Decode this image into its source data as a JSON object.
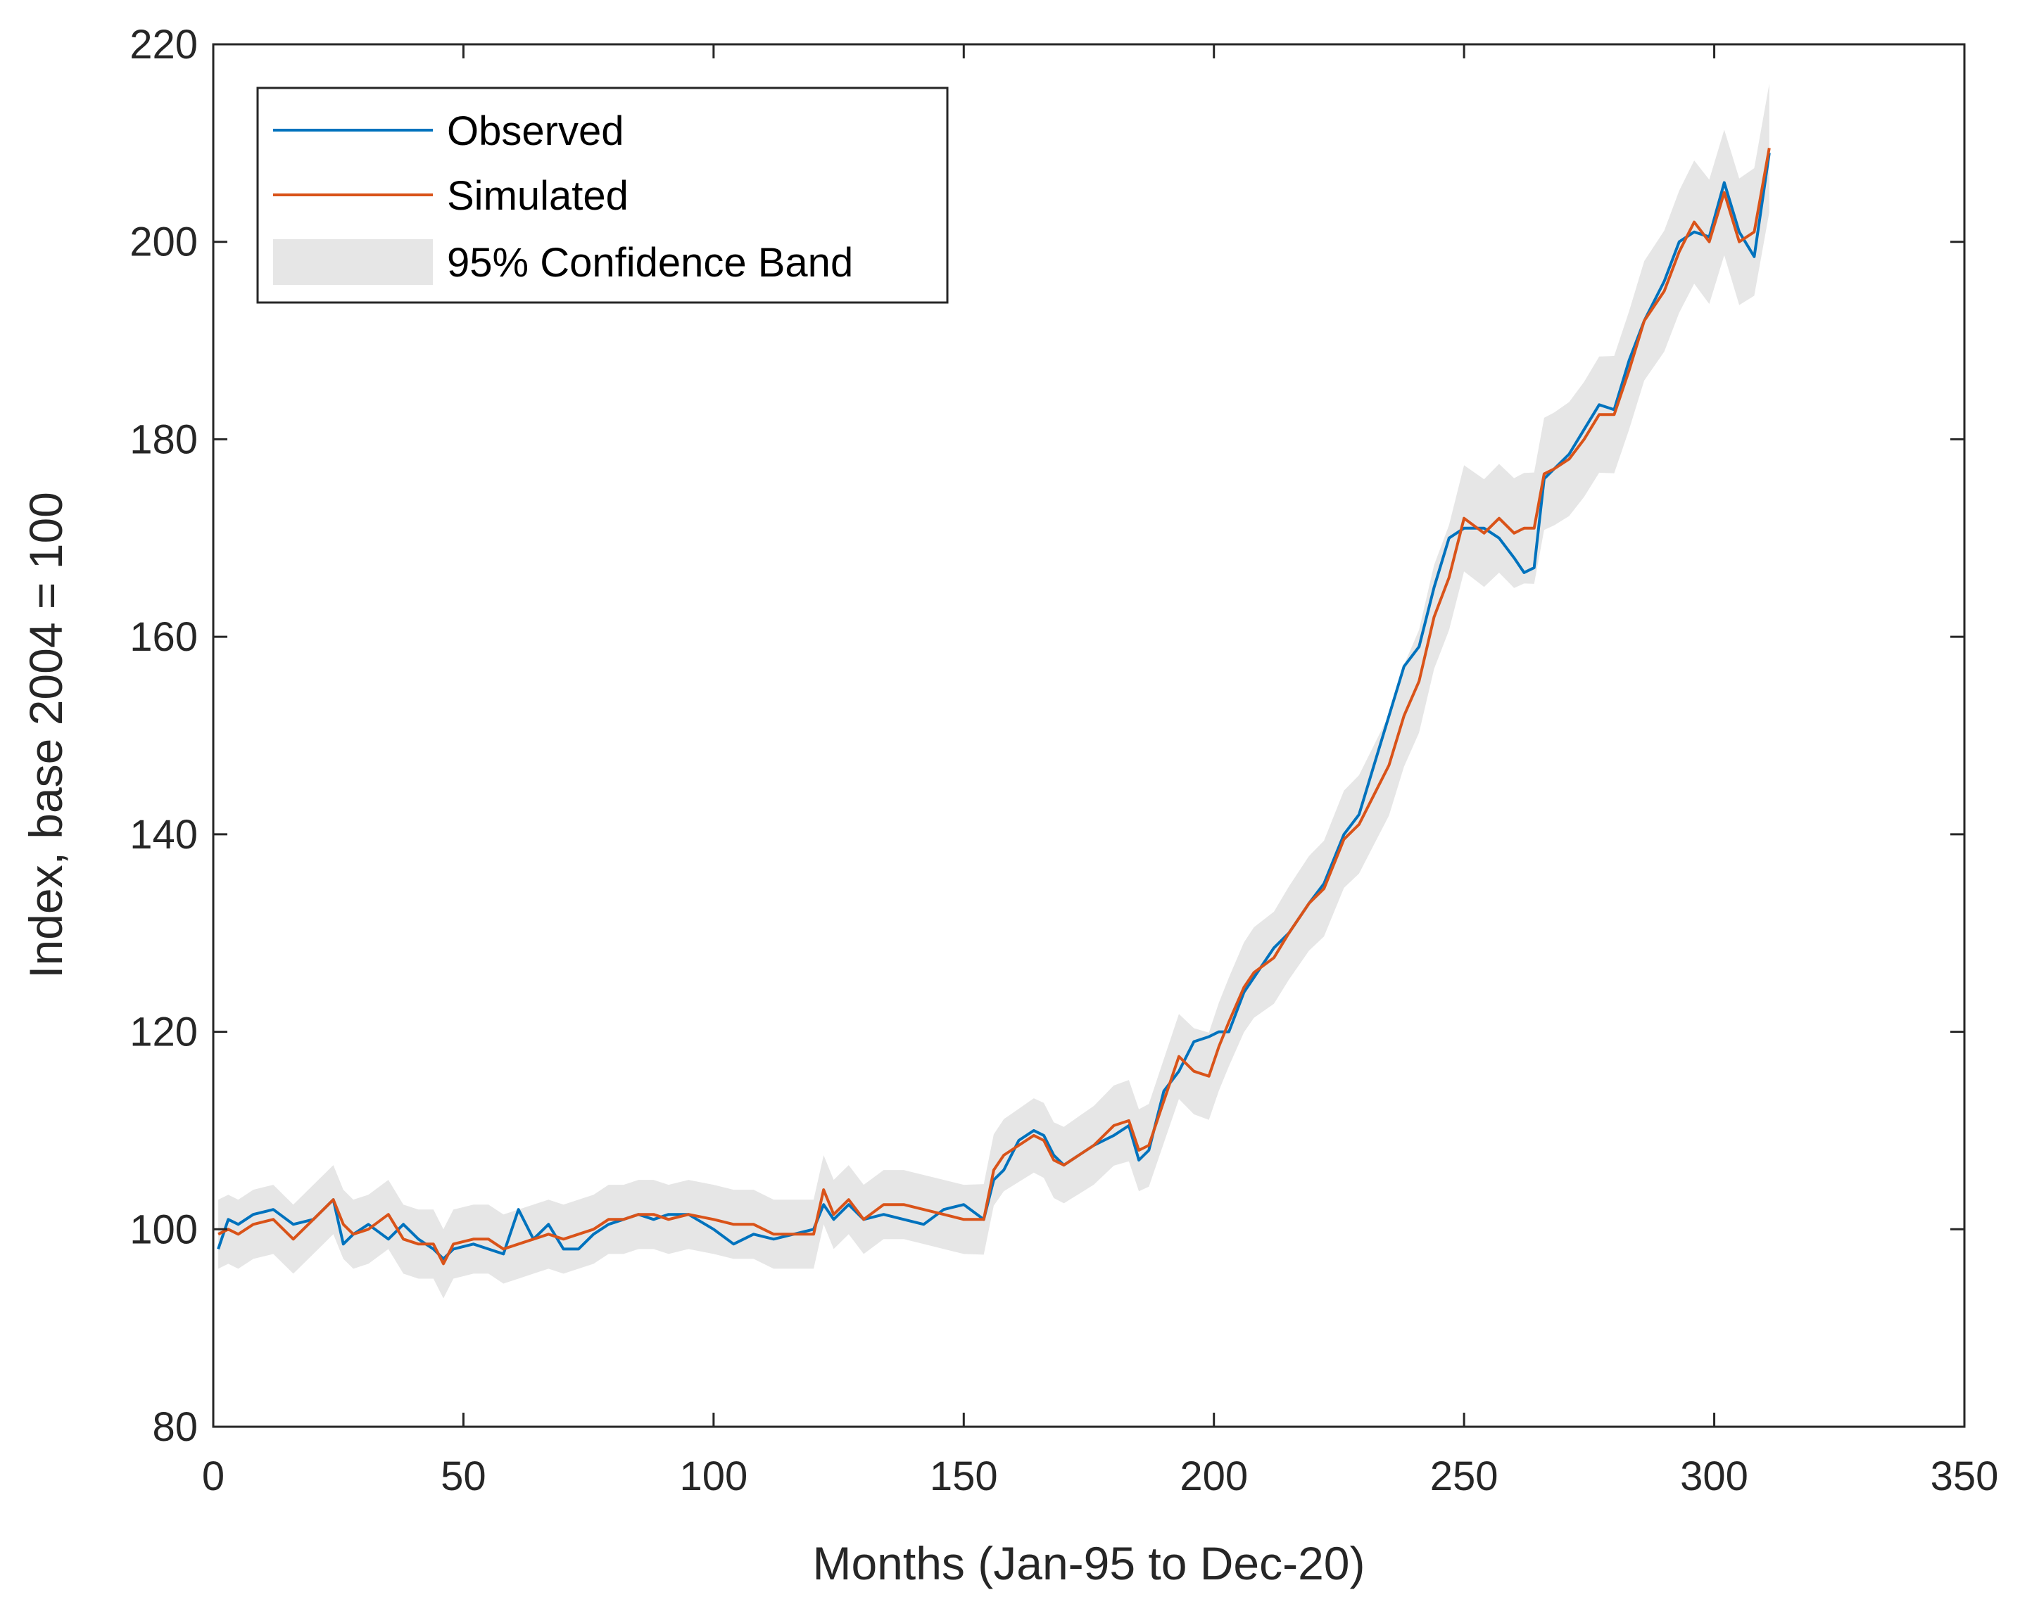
{
  "chart_data": {
    "type": "line",
    "title": "",
    "xlabel": "Months (Jan-95 to Dec-20)",
    "ylabel": "Index, base 2004 = 100",
    "xlim": [
      0,
      350
    ],
    "ylim": [
      80,
      220
    ],
    "xticks": [
      0,
      50,
      100,
      150,
      200,
      250,
      300,
      350
    ],
    "yticks": [
      80,
      100,
      120,
      140,
      160,
      180,
      200,
      220
    ],
    "grid": false,
    "legend_position": "top-left",
    "legend": [
      "Observed",
      "Simulated",
      "95% Confidence Band"
    ],
    "band_halfwidth_early": 3.5,
    "band_halfwidth_late": 6.5,
    "colors": {
      "observed": "#0072BD",
      "simulated": "#D95319",
      "band": "#E6E6E6",
      "axis": "#262626"
    },
    "series": [
      {
        "name": "Observed",
        "x": [
          1,
          3,
          5,
          8,
          12,
          16,
          20,
          24,
          26,
          28,
          31,
          35,
          38,
          41,
          44,
          46,
          48,
          52,
          55,
          58,
          61,
          64,
          67,
          70,
          73,
          76,
          79,
          82,
          85,
          88,
          91,
          95,
          100,
          104,
          108,
          112,
          116,
          120,
          122,
          124,
          127,
          130,
          134,
          138,
          142,
          146,
          150,
          154,
          156,
          158,
          161,
          164,
          166,
          168,
          170,
          173,
          176,
          180,
          183,
          185,
          187,
          190,
          193,
          196,
          199,
          201,
          203,
          206,
          208,
          212,
          215,
          219,
          222,
          226,
          229,
          232,
          235,
          238,
          241,
          244,
          247,
          250,
          254,
          257,
          260,
          262,
          264,
          266,
          268,
          271,
          274,
          277,
          280,
          283,
          286,
          290,
          293,
          296,
          299,
          302,
          305,
          308,
          311
        ],
        "values": [
          98,
          101,
          100.5,
          101.5,
          102,
          100.5,
          101,
          103,
          98.5,
          99.5,
          100.5,
          99,
          100.5,
          99,
          98,
          97,
          98,
          98.5,
          98,
          97.5,
          102,
          99,
          100.5,
          98,
          98,
          99.5,
          100.5,
          101,
          101.5,
          101,
          101.5,
          101.5,
          100,
          98.5,
          99.5,
          99,
          99.5,
          100,
          102.5,
          101,
          102.5,
          101,
          101.5,
          101,
          100.5,
          102,
          102.5,
          101,
          105,
          106,
          109,
          110,
          109.5,
          107.5,
          106.5,
          107.5,
          108.5,
          109.5,
          110.5,
          107,
          108,
          114,
          116,
          119,
          119.5,
          120,
          120,
          124,
          125.5,
          128.5,
          130,
          133,
          135,
          140,
          142,
          147,
          152,
          157,
          159,
          165,
          170,
          171,
          171,
          170,
          168,
          166.5,
          167,
          176,
          177,
          178.5,
          181,
          183.5,
          183,
          188,
          192,
          196,
          200,
          201,
          200.5,
          206,
          201,
          198.5,
          209
        ]
      },
      {
        "name": "Simulated",
        "x": [
          1,
          3,
          5,
          8,
          12,
          16,
          20,
          24,
          26,
          28,
          31,
          35,
          38,
          41,
          44,
          46,
          48,
          52,
          55,
          58,
          61,
          64,
          67,
          70,
          73,
          76,
          79,
          82,
          85,
          88,
          91,
          95,
          100,
          104,
          108,
          112,
          116,
          120,
          122,
          124,
          127,
          130,
          134,
          138,
          142,
          146,
          150,
          154,
          156,
          158,
          161,
          164,
          166,
          168,
          170,
          173,
          176,
          180,
          183,
          185,
          187,
          190,
          193,
          196,
          199,
          201,
          203,
          206,
          208,
          212,
          215,
          219,
          222,
          226,
          229,
          232,
          235,
          238,
          241,
          244,
          247,
          250,
          254,
          257,
          260,
          262,
          264,
          266,
          268,
          271,
          274,
          277,
          280,
          283,
          286,
          290,
          293,
          296,
          299,
          302,
          305,
          308,
          311
        ],
        "values": [
          99.5,
          100,
          99.5,
          100.5,
          101,
          99,
          101,
          103,
          100.5,
          99.5,
          100,
          101.5,
          99,
          98.5,
          98.5,
          96.5,
          98.5,
          99,
          99,
          98,
          98.5,
          99,
          99.5,
          99,
          99.5,
          100,
          101,
          101,
          101.5,
          101.5,
          101,
          101.5,
          101,
          100.5,
          100.5,
          99.5,
          99.5,
          99.5,
          104,
          101.5,
          103,
          101,
          102.5,
          102.5,
          102,
          101.5,
          101,
          101,
          106,
          107.5,
          108.5,
          109.5,
          109,
          107,
          106.5,
          107.5,
          108.5,
          110.5,
          111,
          108,
          108.5,
          113,
          117.5,
          116,
          115.5,
          118.5,
          121,
          124.5,
          126,
          127.5,
          130,
          133,
          134.5,
          139.5,
          141,
          144,
          147,
          152,
          155.5,
          162,
          166,
          172,
          170.5,
          172,
          170.5,
          171,
          171,
          176.5,
          177,
          178,
          180,
          182.5,
          182.5,
          187,
          192,
          195,
          199,
          202,
          200,
          205,
          200,
          201,
          209.5
        ]
      }
    ]
  }
}
